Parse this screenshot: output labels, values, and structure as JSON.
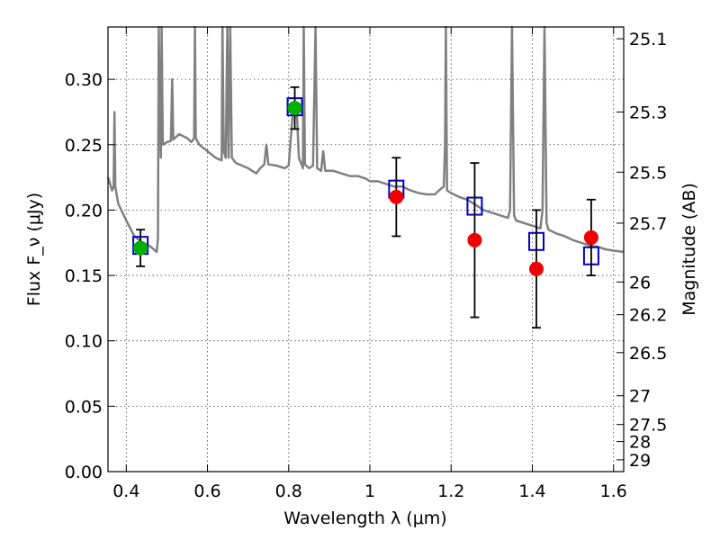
{
  "chart_data": {
    "type": "scatter",
    "title": "",
    "xlabel": "Wavelength λ (μm)",
    "ylabel": "Flux F_ν (μJy)",
    "ylabel_right": "Magnitude (AB)",
    "xlim": [
      0.355,
      1.625
    ],
    "ylim": [
      0.0,
      0.34
    ],
    "grid": true,
    "x_ticks": [
      0.4,
      0.6,
      0.8,
      1.0,
      1.2,
      1.4,
      1.6
    ],
    "x_tick_labels": [
      "0.4",
      "0.6",
      "0.8",
      "1",
      "1.2",
      "1.4",
      "1.6"
    ],
    "y_ticks": [
      0.0,
      0.05,
      0.1,
      0.15,
      0.2,
      0.25,
      0.3
    ],
    "y_tick_labels": [
      "0.00",
      "0.05",
      "0.10",
      "0.15",
      "0.20",
      "0.25",
      "0.30"
    ],
    "right_ticks": [
      {
        "label": "25.1",
        "flux": 0.331
      },
      {
        "label": "25.3",
        "flux": 0.275
      },
      {
        "label": "25.5",
        "flux": 0.229
      },
      {
        "label": "25.7",
        "flux": 0.19
      },
      {
        "label": "26",
        "flux": 0.145
      },
      {
        "label": "26.2",
        "flux": 0.12
      },
      {
        "label": "26.5",
        "flux": 0.091
      },
      {
        "label": "27",
        "flux": 0.058
      },
      {
        "label": "27.5",
        "flux": 0.036
      },
      {
        "label": "28",
        "flux": 0.023
      },
      {
        "label": "29",
        "flux": 0.009
      }
    ],
    "series": [
      {
        "kind": "line",
        "color": "#808080",
        "points": [
          [
            0.355,
            0.225
          ],
          [
            0.36,
            0.22
          ],
          [
            0.365,
            0.215
          ],
          [
            0.369,
            0.218
          ],
          [
            0.371,
            0.275
          ],
          [
            0.373,
            0.218
          ],
          [
            0.38,
            0.205
          ],
          [
            0.4,
            0.192
          ],
          [
            0.42,
            0.18
          ],
          [
            0.44,
            0.175
          ],
          [
            0.46,
            0.172
          ],
          [
            0.475,
            0.168
          ],
          [
            0.478,
            0.178
          ],
          [
            0.48,
            0.34
          ],
          [
            0.482,
            0.29
          ],
          [
            0.485,
            0.24
          ],
          [
            0.487,
            0.34
          ],
          [
            0.49,
            0.25
          ],
          [
            0.5,
            0.252
          ],
          [
            0.51,
            0.253
          ],
          [
            0.513,
            0.3
          ],
          [
            0.516,
            0.254
          ],
          [
            0.53,
            0.258
          ],
          [
            0.55,
            0.255
          ],
          [
            0.56,
            0.252
          ],
          [
            0.567,
            0.255
          ],
          [
            0.569,
            0.34
          ],
          [
            0.571,
            0.255
          ],
          [
            0.58,
            0.25
          ],
          [
            0.6,
            0.245
          ],
          [
            0.62,
            0.24
          ],
          [
            0.635,
            0.238
          ],
          [
            0.637,
            0.34
          ],
          [
            0.64,
            0.245
          ],
          [
            0.645,
            0.24
          ],
          [
            0.649,
            0.34
          ],
          [
            0.652,
            0.24
          ],
          [
            0.656,
            0.34
          ],
          [
            0.66,
            0.24
          ],
          [
            0.67,
            0.236
          ],
          [
            0.7,
            0.232
          ],
          [
            0.72,
            0.228
          ],
          [
            0.73,
            0.232
          ],
          [
            0.74,
            0.235
          ],
          [
            0.745,
            0.25
          ],
          [
            0.75,
            0.235
          ],
          [
            0.77,
            0.234
          ],
          [
            0.79,
            0.232
          ],
          [
            0.8,
            0.234
          ],
          [
            0.81,
            0.275
          ],
          [
            0.82,
            0.275
          ],
          [
            0.825,
            0.24
          ],
          [
            0.835,
            0.232
          ],
          [
            0.837,
            0.34
          ],
          [
            0.84,
            0.235
          ],
          [
            0.85,
            0.232
          ],
          [
            0.86,
            0.234
          ],
          [
            0.866,
            0.34
          ],
          [
            0.87,
            0.232
          ],
          [
            0.88,
            0.23
          ],
          [
            0.885,
            0.245
          ],
          [
            0.89,
            0.23
          ],
          [
            0.91,
            0.23
          ],
          [
            0.93,
            0.228
          ],
          [
            0.95,
            0.226
          ],
          [
            0.97,
            0.226
          ],
          [
            0.99,
            0.224
          ],
          [
            1.0,
            0.222
          ],
          [
            1.02,
            0.222
          ],
          [
            1.04,
            0.22
          ],
          [
            1.06,
            0.218
          ],
          [
            1.08,
            0.218
          ],
          [
            1.1,
            0.215
          ],
          [
            1.12,
            0.213
          ],
          [
            1.14,
            0.212
          ],
          [
            1.16,
            0.212
          ],
          [
            1.17,
            0.215
          ],
          [
            1.182,
            0.218
          ],
          [
            1.185,
            0.25
          ],
          [
            1.187,
            0.34
          ],
          [
            1.19,
            0.215
          ],
          [
            1.2,
            0.213
          ],
          [
            1.22,
            0.21
          ],
          [
            1.24,
            0.208
          ],
          [
            1.26,
            0.204
          ],
          [
            1.28,
            0.2
          ],
          [
            1.3,
            0.198
          ],
          [
            1.32,
            0.196
          ],
          [
            1.34,
            0.194
          ],
          [
            1.345,
            0.2
          ],
          [
            1.35,
            0.34
          ],
          [
            1.355,
            0.196
          ],
          [
            1.36,
            0.192
          ],
          [
            1.38,
            0.19
          ],
          [
            1.4,
            0.188
          ],
          [
            1.42,
            0.186
          ],
          [
            1.425,
            0.2
          ],
          [
            1.43,
            0.34
          ],
          [
            1.435,
            0.19
          ],
          [
            1.44,
            0.185
          ],
          [
            1.46,
            0.182
          ],
          [
            1.48,
            0.18
          ],
          [
            1.5,
            0.177
          ],
          [
            1.52,
            0.175
          ],
          [
            1.54,
            0.173
          ],
          [
            1.56,
            0.172
          ],
          [
            1.58,
            0.17
          ],
          [
            1.6,
            0.169
          ],
          [
            1.625,
            0.168
          ]
        ]
      },
      {
        "kind": "model_points",
        "marker": "square",
        "color": "#0000cc",
        "points": [
          [
            0.435,
            0.173
          ],
          [
            0.815,
            0.279
          ],
          [
            1.065,
            0.216
          ],
          [
            1.258,
            0.203
          ],
          [
            1.41,
            0.176
          ],
          [
            1.545,
            0.165
          ]
        ]
      },
      {
        "kind": "observations",
        "marker": "circle",
        "points": [
          {
            "x": 0.435,
            "y": 0.171,
            "err": 0.014,
            "color": "#00b000"
          },
          {
            "x": 0.815,
            "y": 0.278,
            "err": 0.016,
            "color": "#00b000"
          },
          {
            "x": 1.065,
            "y": 0.21,
            "err": 0.03,
            "color": "#ee0000"
          },
          {
            "x": 1.258,
            "y": 0.177,
            "err": 0.059,
            "color": "#ee0000"
          },
          {
            "x": 1.41,
            "y": 0.155,
            "err": 0.045,
            "color": "#ee0000"
          },
          {
            "x": 1.545,
            "y": 0.179,
            "err": 0.029,
            "color": "#ee0000"
          }
        ]
      }
    ]
  }
}
